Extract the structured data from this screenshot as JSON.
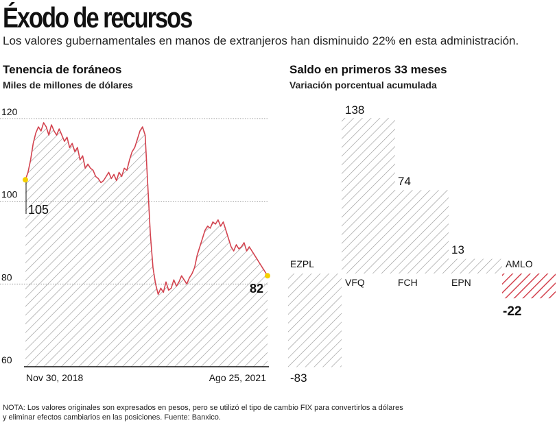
{
  "header": {
    "title": "Éxodo de recursos",
    "subtitle": "Los valores gubernamentales en manos de extranjeros han disminuido 22% en esta administración."
  },
  "colors": {
    "line": "#d3434f",
    "hatch": "#9a9a9a",
    "hatch_red": "#d3434f",
    "dot": "#f5d000",
    "grid": "#999999"
  },
  "note": {
    "line1": "NOTA: Los valores originales son expresados en pesos, pero se utilizó el tipo de cambio FIX para convertirlos a dólares",
    "line2": "y eliminar efectos cambiarios en las posiciones. Fuente: Banxico."
  },
  "chart_data": [
    {
      "type": "area",
      "title": "Tenencia de foráneos",
      "subtitle": "Miles de millones de dólares",
      "ylim": [
        60,
        120
      ],
      "yticks": [
        60,
        80,
        100,
        120
      ],
      "x_start_label": "Nov 30, 2018",
      "x_end_label": "Ago 25, 2021",
      "start_label": "105",
      "end_label": "82",
      "values": [
        105.2,
        107,
        110,
        114,
        116.5,
        118,
        117,
        119,
        118,
        116,
        118.5,
        117,
        116,
        117.5,
        116,
        114.5,
        115.5,
        113,
        114,
        112,
        113,
        110,
        111,
        108,
        109,
        108,
        107.5,
        106,
        105.5,
        104.5,
        105,
        106,
        107,
        105.5,
        106.5,
        105,
        107,
        106,
        108,
        107.5,
        110,
        112,
        113,
        115,
        117,
        118,
        116,
        104,
        92,
        84,
        80,
        77.5,
        79,
        78,
        80.5,
        78.5,
        79,
        81,
        79.5,
        80.5,
        82,
        81,
        80,
        81.5,
        82.5,
        84,
        87,
        89,
        91,
        93,
        94,
        93.5,
        95,
        94.5,
        95.5,
        94,
        95,
        93,
        91,
        89,
        88,
        89.5,
        88.5,
        89,
        90,
        88,
        89,
        88,
        87,
        86,
        85,
        84,
        83,
        82
      ]
    },
    {
      "type": "bar",
      "title": "Saldo en primeros 33 meses",
      "subtitle": "Variación porcentual acumulada",
      "categories": [
        "EZPL",
        "VFQ",
        "FCH",
        "EPN",
        "AMLO"
      ],
      "values": [
        -83,
        138,
        74,
        13,
        -22
      ],
      "labels": [
        "-83",
        "138",
        "74",
        "13",
        "-22"
      ]
    }
  ]
}
